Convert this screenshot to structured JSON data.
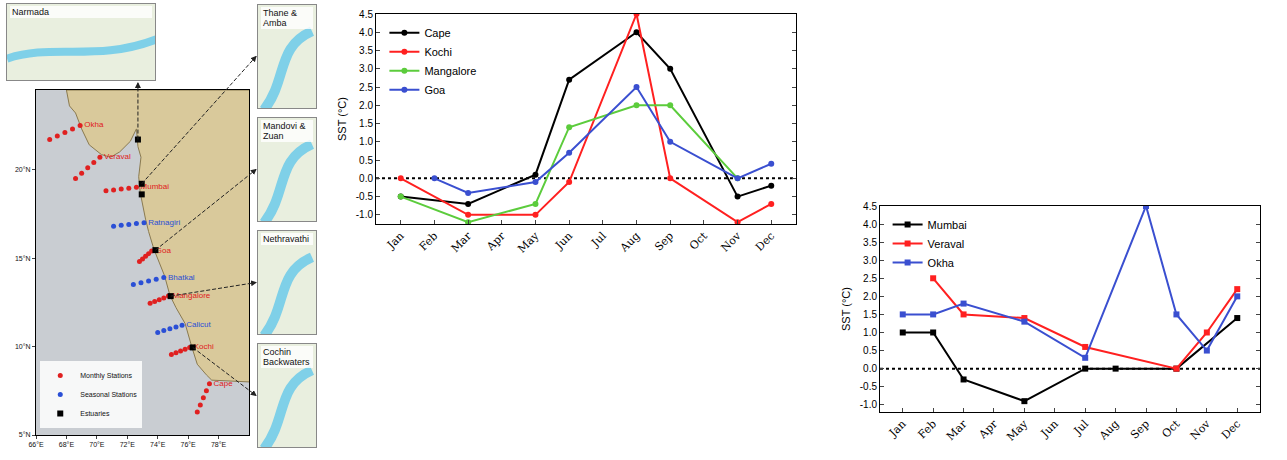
{
  "chart_data": [
    {
      "type": "map",
      "xlim": [
        66,
        80
      ],
      "ylim": [
        5,
        24.5
      ],
      "xticks": [
        {
          "value": 66,
          "label": "66°E"
        },
        {
          "value": 68,
          "label": "68°E"
        },
        {
          "value": 70,
          "label": "70°E"
        },
        {
          "value": 72,
          "label": "72°E"
        },
        {
          "value": 74,
          "label": "74°E"
        },
        {
          "value": 76,
          "label": "76°E"
        },
        {
          "value": 78,
          "label": "78°E"
        }
      ],
      "yticks": [
        {
          "value": 5,
          "label": "5°N"
        },
        {
          "value": 10,
          "label": "10°N"
        },
        {
          "value": 15,
          "label": "15°N"
        },
        {
          "value": 20,
          "label": "20°N"
        }
      ],
      "coastline": {
        "lon": [
          80,
          77.55,
          77.2,
          76.6,
          76.25,
          75.8,
          75.2,
          74.8,
          74.45,
          74.0,
          73.75,
          73.4,
          73.2,
          72.85,
          72.75,
          72.9,
          72.7,
          72.6,
          72.2,
          71.5,
          70.9,
          70.3,
          69.5,
          69.0,
          68.6,
          68.2,
          68.0,
          80
        ],
        "lat": [
          8.0,
          8.1,
          8.4,
          9.0,
          9.95,
          11.3,
          12.2,
          12.9,
          14.0,
          14.9,
          15.5,
          16.5,
          17.2,
          18.7,
          19.6,
          20.7,
          21.3,
          22.3,
          21.6,
          21.0,
          20.7,
          20.85,
          21.4,
          22.3,
          23.2,
          23.6,
          24.5,
          24.5
        ]
      },
      "legend": "bottom-left",
      "series": [
        {
          "name": "Monthly Stations",
          "color": "#e02020",
          "marker": "circle",
          "stations": [
            {
              "label": "Okha",
              "lon": [
                68.9,
                68.4,
                67.9,
                67.4,
                66.9
              ],
              "lat": [
                22.5,
                22.3,
                22.1,
                21.9,
                21.7
              ]
            },
            {
              "label": "Veraval",
              "lon": [
                70.2,
                69.8,
                69.4,
                69.0,
                68.6
              ],
              "lat": [
                20.7,
                20.4,
                20.1,
                19.8,
                19.5
              ]
            },
            {
              "label": "Mumbai",
              "lon": [
                72.6,
                72.1,
                71.6,
                71.1,
                70.6
              ],
              "lat": [
                19.0,
                18.95,
                18.9,
                18.85,
                18.8
              ]
            },
            {
              "label": "Goa",
              "lon": [
                73.6,
                73.4,
                73.2,
                73.0,
                72.8
              ],
              "lat": [
                15.4,
                15.25,
                15.1,
                14.95,
                14.8
              ]
            },
            {
              "label": "Mangalore",
              "lon": [
                74.7,
                74.4,
                74.1,
                73.8,
                73.5
              ],
              "lat": [
                12.85,
                12.75,
                12.65,
                12.55,
                12.45
              ]
            },
            {
              "label": "Kochi",
              "lon": [
                76.1,
                75.8,
                75.5,
                75.2,
                74.9
              ],
              "lat": [
                9.95,
                9.85,
                9.75,
                9.65,
                9.55
              ]
            },
            {
              "label": "Cape",
              "lon": [
                77.4,
                77.2,
                77.0,
                76.8,
                76.6
              ],
              "lat": [
                7.9,
                7.5,
                7.1,
                6.7,
                6.3
              ]
            }
          ]
        },
        {
          "name": "Seasonal Stations",
          "color": "#2a4fd6",
          "marker": "circle",
          "stations": [
            {
              "label": "Ratnagiri",
              "lon": [
                73.1,
                72.6,
                72.1,
                71.6,
                71.1
              ],
              "lat": [
                17.0,
                16.95,
                16.9,
                16.85,
                16.8
              ]
            },
            {
              "label": "Bhatkal",
              "lon": [
                74.4,
                73.9,
                73.4,
                72.9,
                72.4
              ],
              "lat": [
                13.9,
                13.8,
                13.7,
                13.6,
                13.5
              ]
            },
            {
              "label": "Calicut",
              "lon": [
                75.6,
                75.2,
                74.8,
                74.4,
                74.0
              ],
              "lat": [
                11.2,
                11.1,
                11.0,
                10.9,
                10.8
              ]
            }
          ]
        },
        {
          "name": "Estuaries",
          "color": "#000000",
          "marker": "square",
          "stations": [
            {
              "label": null,
              "lon": [
                72.7,
                72.95,
                72.95,
                73.85,
                74.85,
                76.3
              ],
              "lat": [
                21.7,
                19.2,
                18.6,
                15.45,
                12.85,
                9.95
              ]
            }
          ]
        }
      ],
      "insets": [
        {
          "title": "Narmada",
          "lon": 72.7,
          "lat": 21.7
        },
        {
          "title": "Thane & Amba",
          "lon": 72.95,
          "lat": 19.2
        },
        {
          "title": "Mandovi & Zuan",
          "lon": 73.85,
          "lat": 15.45
        },
        {
          "title": "Nethravathi",
          "lon": 74.85,
          "lat": 12.85
        },
        {
          "title": "Cochin Backwaters",
          "lon": 76.3,
          "lat": 9.95
        }
      ]
    },
    {
      "type": "line",
      "y_label": "SST (°C)",
      "categories": [
        "Jan",
        "Feb",
        "Mar",
        "Apr",
        "May",
        "Jun",
        "Jul",
        "Aug",
        "Sep",
        "Oct",
        "Nov",
        "Dec"
      ],
      "ylim": [
        -1.25,
        4.5
      ],
      "yticks": [
        {
          "value": -1,
          "label": "-1.0"
        },
        -0.5,
        {
          "value": 0,
          "label": "0.0"
        },
        0.5,
        {
          "value": 1,
          "label": "1.0"
        },
        1.5,
        {
          "value": 2,
          "label": "2.0"
        },
        2.5,
        {
          "value": 3,
          "label": "3.0"
        },
        3.5,
        {
          "value": 4,
          "label": "4.0"
        },
        4.5
      ],
      "hline": 0,
      "legend": "top-left",
      "marker": "circle",
      "series": [
        {
          "name": "Cape",
          "color": "#000000",
          "values": [
            -0.5,
            null,
            -0.7,
            null,
            0.1,
            2.7,
            null,
            4.0,
            3.0,
            null,
            -0.5,
            -0.2
          ]
        },
        {
          "name": "Kochi",
          "color": "#ff2020",
          "values": [
            0.0,
            null,
            -1.0,
            null,
            -1.0,
            -0.1,
            null,
            4.5,
            0.0,
            null,
            -1.2,
            -0.7
          ]
        },
        {
          "name": "Mangalore",
          "color": "#5ccc3c",
          "values": [
            -0.5,
            null,
            -1.2,
            null,
            -0.7,
            1.4,
            null,
            2.0,
            2.0,
            null,
            0.0,
            null
          ]
        },
        {
          "name": "Goa",
          "color": "#3a4fd0",
          "values": [
            null,
            0.0,
            -0.4,
            null,
            -0.1,
            0.7,
            null,
            2.5,
            1.0,
            null,
            0.0,
            0.4
          ]
        }
      ]
    },
    {
      "type": "line",
      "y_label": "SST (°C)",
      "categories": [
        "Jan",
        "Feb",
        "Mar",
        "Apr",
        "May",
        "Jun",
        "Jul",
        "Aug",
        "Sep",
        "Oct",
        "Nov",
        "Dec"
      ],
      "ylim": [
        -1.2,
        4.5
      ],
      "yticks": [
        {
          "value": -1,
          "label": "-1.0"
        },
        -0.5,
        {
          "value": 0,
          "label": "0.0"
        },
        0.5,
        {
          "value": 1,
          "label": "1.0"
        },
        1.5,
        {
          "value": 2,
          "label": "2.0"
        },
        2.5,
        {
          "value": 3,
          "label": "3.0"
        },
        3.5,
        {
          "value": 4,
          "label": "4.0"
        },
        4.5
      ],
      "hline": 0,
      "legend": "top-left",
      "marker": "square",
      "series": [
        {
          "name": "Mumbai",
          "color": "#000000",
          "values": [
            1.0,
            1.0,
            -0.3,
            null,
            -0.9,
            null,
            0.0,
            0.0,
            null,
            0.0,
            null,
            1.4
          ]
        },
        {
          "name": "Veraval",
          "color": "#ff2020",
          "values": [
            null,
            2.5,
            1.5,
            null,
            1.4,
            null,
            0.6,
            null,
            null,
            0.0,
            1.0,
            2.2
          ]
        },
        {
          "name": "Okha",
          "color": "#3a4fd0",
          "values": [
            1.5,
            1.5,
            1.8,
            null,
            1.3,
            null,
            0.3,
            null,
            4.5,
            1.5,
            0.5,
            2.0
          ]
        }
      ]
    }
  ]
}
